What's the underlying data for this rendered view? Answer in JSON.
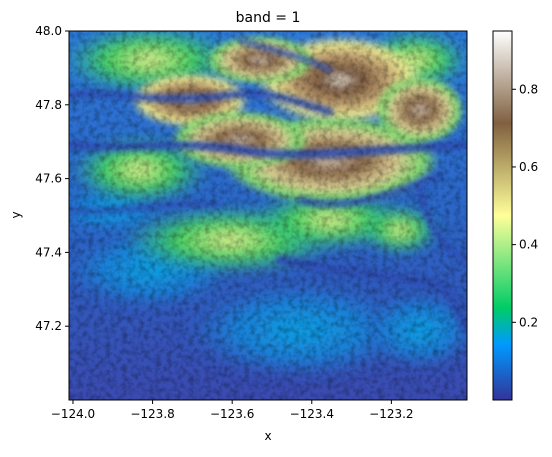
{
  "chart_data": {
    "type": "heatmap",
    "title": "band = 1",
    "xlabel": "x",
    "ylabel": "y",
    "xlim": [
      -124.01,
      -123.01
    ],
    "ylim": [
      47.0,
      48.0
    ],
    "x_ticks": [
      -124.0,
      -123.8,
      -123.6,
      -123.4,
      -123.2
    ],
    "x_tick_labels": [
      "−124.0",
      "−123.8",
      "−123.6",
      "−123.4",
      "−123.2"
    ],
    "y_ticks": [
      47.2,
      47.4,
      47.6,
      47.8,
      48.0
    ],
    "y_tick_labels": [
      "47.2",
      "47.4",
      "47.6",
      "47.8",
      "48.0"
    ],
    "colorbar": {
      "min": 0.0,
      "max": 0.95,
      "ticks": [
        0.2,
        0.4,
        0.6,
        0.8
      ],
      "tick_labels": [
        "0.2",
        "0.4",
        "0.6",
        "0.8"
      ],
      "colormap": "terrain"
    },
    "grid": false
  },
  "colors": {
    "cmap_stops": [
      "#333399",
      "#0099ff",
      "#00cc66",
      "#ffff99",
      "#806040",
      "#ffffff"
    ]
  }
}
